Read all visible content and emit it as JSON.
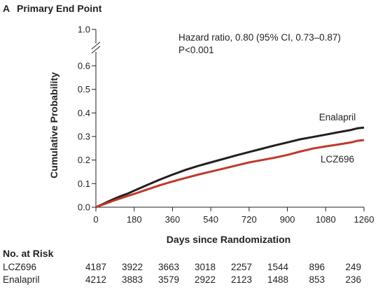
{
  "panel": {
    "letter": "A",
    "title": "Primary End Point"
  },
  "chart_data": {
    "type": "line",
    "xlabel": "Days since Randomization",
    "ylabel": "Cumulative Probability",
    "xlim": [
      0,
      1260
    ],
    "ylim": [
      0,
      0.6
    ],
    "x_ticks": [
      0,
      180,
      360,
      540,
      720,
      900,
      1080,
      1260
    ],
    "x_tick_labels": [
      "0",
      "180",
      "360",
      "540",
      "720",
      "900",
      "1080",
      "1260"
    ],
    "y_ticks": [
      0,
      0.1,
      0.2,
      0.3,
      0.4,
      0.5,
      0.6
    ],
    "y_tick_labels": [
      "0.0",
      "0.1",
      "0.2",
      "0.3",
      "0.4",
      "0.5",
      "0.6"
    ],
    "y_break_label": "1.0",
    "axis_break": true,
    "grid": false,
    "annotation": [
      "Hazard ratio, 0.80 (95% CI, 0.73–0.87)",
      "P<0.001"
    ],
    "series": [
      {
        "name": "Enalapril",
        "color": "#231f20",
        "x": [
          0,
          30,
          60,
          90,
          120,
          150,
          180,
          240,
          300,
          360,
          420,
          480,
          540,
          600,
          660,
          720,
          780,
          840,
          900,
          960,
          1020,
          1080,
          1140,
          1200,
          1230,
          1260
        ],
        "y": [
          0,
          0.012,
          0.025,
          0.037,
          0.048,
          0.058,
          0.07,
          0.094,
          0.117,
          0.138,
          0.158,
          0.175,
          0.19,
          0.205,
          0.22,
          0.234,
          0.248,
          0.262,
          0.275,
          0.288,
          0.298,
          0.308,
          0.318,
          0.328,
          0.335,
          0.338
        ]
      },
      {
        "name": "LCZ696",
        "color": "#c0392b",
        "x": [
          0,
          30,
          60,
          90,
          120,
          150,
          180,
          240,
          300,
          360,
          420,
          480,
          540,
          600,
          660,
          720,
          780,
          840,
          900,
          960,
          1020,
          1080,
          1140,
          1200,
          1230,
          1260
        ],
        "y": [
          0,
          0.01,
          0.02,
          0.03,
          0.039,
          0.048,
          0.056,
          0.075,
          0.093,
          0.109,
          0.124,
          0.138,
          0.151,
          0.164,
          0.177,
          0.19,
          0.2,
          0.21,
          0.222,
          0.236,
          0.249,
          0.258,
          0.266,
          0.275,
          0.282,
          0.285
        ]
      }
    ]
  },
  "risk_table": {
    "header": "No. at Risk",
    "rows": [
      {
        "name": "LCZ696",
        "values": [
          "4187",
          "3922",
          "3663",
          "3018",
          "2257",
          "1544",
          "896",
          "249"
        ]
      },
      {
        "name": "Enalapril",
        "values": [
          "4212",
          "3883",
          "3579",
          "2922",
          "2123",
          "1488",
          "853",
          "236"
        ]
      }
    ]
  }
}
